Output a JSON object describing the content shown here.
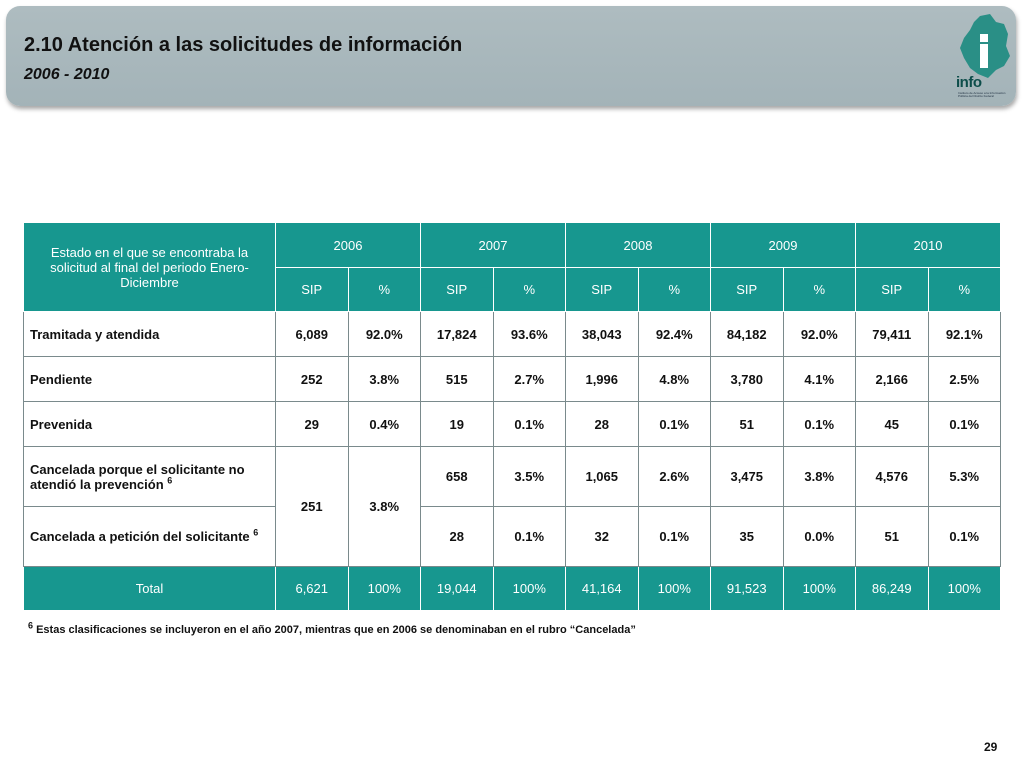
{
  "header": {
    "title": "2.10 Atención a las solicitudes de información",
    "subtitle": "2006 - 2010",
    "logo_text": "info",
    "logo_small": "Instituto de Acceso a la Información Pública del Distrito Federal",
    "colors": {
      "banner": "#a8b8bc",
      "accent": "#17978f"
    }
  },
  "table": {
    "corner_label": "Estado en el que se encontraba la solicitud al final del  periodo Enero-Diciembre",
    "years": [
      "2006",
      "2007",
      "2008",
      "2009",
      "2010"
    ],
    "sub_headers": [
      "SIP",
      "%",
      "SIP",
      "%",
      "SIP",
      "%",
      "SIP",
      "%",
      "SIP",
      "%"
    ],
    "rows": [
      {
        "label": "Tramitada y atendida",
        "values": [
          "6,089",
          "92.0%",
          "17,824",
          "93.6%",
          "38,043",
          "92.4%",
          "84,182",
          "92.0%",
          "79,411",
          "92.1%"
        ]
      },
      {
        "label": "Pendiente",
        "values": [
          "252",
          "3.8%",
          "515",
          "2.7%",
          "1,996",
          "4.8%",
          "3,780",
          "4.1%",
          "2,166",
          "2.5%"
        ]
      },
      {
        "label": "Prevenida",
        "values": [
          "29",
          "0.4%",
          "19",
          "0.1%",
          "28",
          "0.1%",
          "51",
          "0.1%",
          "45",
          "0.1%"
        ]
      }
    ],
    "cancel_group": {
      "merged_2006": [
        "251",
        "3.8%"
      ],
      "rows": [
        {
          "label": "Cancelada porque el solicitante no atendió la prevención",
          "sup": "6",
          "values": [
            "658",
            "3.5%",
            "1,065",
            "2.6%",
            "3,475",
            "3.8%",
            "4,576",
            "5.3%"
          ]
        },
        {
          "label": "Cancelada a petición del solicitante",
          "sup": "6",
          "values": [
            "28",
            "0.1%",
            "32",
            "0.1%",
            "35",
            "0.0%",
            "51",
            "0.1%"
          ]
        }
      ]
    },
    "total": {
      "label": "Total",
      "values": [
        "6,621",
        "100%",
        "19,044",
        "100%",
        "41,164",
        "100%",
        "91,523",
        "100%",
        "86,249",
        "100%"
      ]
    }
  },
  "footnote": {
    "sup": "6",
    "text": "Estas clasificaciones se incluyeron en el  año 2007, mientras que en 2006 se denominaban en el rubro “Cancelada”"
  },
  "page_number": "29"
}
